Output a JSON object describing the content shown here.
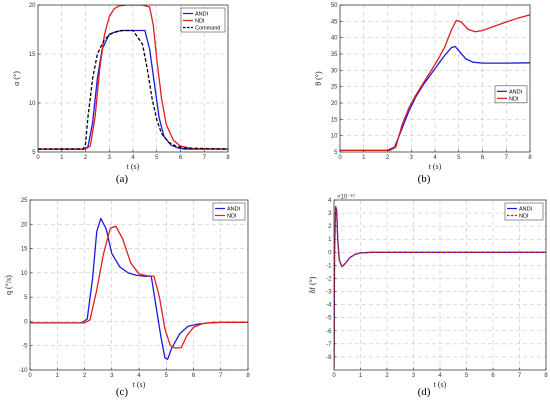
{
  "chart_data": [
    {
      "type": "line",
      "panel_label": "(a)",
      "xlabel": "t (s)",
      "ylabel": "α (°)",
      "xlim": [
        0,
        8
      ],
      "ylim": [
        5,
        20
      ],
      "xticks": [
        "0",
        "1",
        "2",
        "3",
        "4",
        "5",
        "6",
        "7",
        "8"
      ],
      "yticks": [
        "5",
        "10",
        "15",
        "20"
      ],
      "grid": true,
      "legend_placement": "top-right",
      "series": [
        {
          "name": "ANDI",
          "color": "#1a1adb",
          "dash": "solid",
          "x": [
            0,
            1.9,
            2.1,
            2.3,
            2.5,
            2.7,
            3.0,
            3.3,
            3.6,
            4.0,
            4.5,
            4.7,
            4.9,
            5.1,
            5.3,
            5.6,
            5.9,
            6.2,
            7.0,
            8.0
          ],
          "y": [
            5.3,
            5.3,
            5.5,
            8.0,
            12.5,
            15.5,
            17.0,
            17.3,
            17.4,
            17.4,
            17.4,
            15.5,
            12.0,
            8.5,
            6.6,
            5.7,
            5.4,
            5.3,
            5.3,
            5.3
          ]
        },
        {
          "name": "NDI",
          "color": "#e01e1e",
          "dash": "solid",
          "x": [
            0,
            2.0,
            2.2,
            2.4,
            2.6,
            2.8,
            3.0,
            3.2,
            3.4,
            3.7,
            4.0,
            4.4,
            4.7,
            4.85,
            5.0,
            5.2,
            5.4,
            5.7,
            6.0,
            6.5,
            8.0
          ],
          "y": [
            5.3,
            5.3,
            5.6,
            8.5,
            13.5,
            17.0,
            18.8,
            19.6,
            19.9,
            20.0,
            20.0,
            20.0,
            19.8,
            18.0,
            14.5,
            10.5,
            7.8,
            6.2,
            5.6,
            5.35,
            5.3
          ]
        },
        {
          "name": "Command",
          "color": "#000000",
          "dash": "dashed",
          "x": [
            0,
            1.9,
            2.0,
            2.1,
            2.3,
            2.5,
            2.8,
            3.1,
            3.5,
            4.0,
            4.4,
            4.6,
            4.8,
            5.0,
            5.2,
            5.5,
            5.8,
            6.2,
            8.0
          ],
          "y": [
            5.3,
            5.3,
            5.8,
            8.5,
            12.5,
            15.0,
            16.5,
            17.1,
            17.4,
            17.4,
            16.0,
            13.5,
            10.5,
            8.3,
            6.9,
            6.0,
            5.6,
            5.4,
            5.3
          ]
        }
      ]
    },
    {
      "type": "line",
      "panel_label": "(b)",
      "xlabel": "t (s)",
      "ylabel": "θ (°)",
      "xlim": [
        0,
        8
      ],
      "ylim": [
        5,
        50
      ],
      "xticks": [
        "0",
        "1",
        "2",
        "3",
        "4",
        "5",
        "6",
        "7",
        "8"
      ],
      "yticks": [
        "5",
        "10",
        "15",
        "20",
        "25",
        "30",
        "35",
        "40",
        "45",
        "50"
      ],
      "grid": true,
      "legend_placement": "center-right",
      "series": [
        {
          "name": "ANDI",
          "color": "#1a1adb",
          "dash": "solid",
          "x": [
            0,
            2.0,
            2.3,
            2.6,
            2.9,
            3.2,
            3.5,
            3.8,
            4.1,
            4.4,
            4.7,
            4.85,
            5.0,
            5.3,
            5.6,
            6.0,
            7.0,
            8.0
          ],
          "y": [
            5.5,
            5.5,
            6.5,
            12.0,
            17.5,
            22.0,
            25.5,
            28.5,
            31.5,
            34.5,
            37.0,
            37.3,
            36.0,
            33.5,
            32.5,
            32.2,
            32.2,
            32.3
          ]
        },
        {
          "name": "NDI",
          "color": "#e01e1e",
          "dash": "solid",
          "x": [
            0,
            2.1,
            2.35,
            2.6,
            2.9,
            3.2,
            3.5,
            3.8,
            4.1,
            4.4,
            4.7,
            4.9,
            5.1,
            5.4,
            5.7,
            6.0,
            6.5,
            7.0,
            7.5,
            8.0
          ],
          "y": [
            5.5,
            5.5,
            6.5,
            13.0,
            18.5,
            22.5,
            26.0,
            29.5,
            33.0,
            37.0,
            42.5,
            45.3,
            44.8,
            42.5,
            41.8,
            42.2,
            43.5,
            44.8,
            46.0,
            47.0
          ]
        }
      ]
    },
    {
      "type": "line",
      "panel_label": "(c)",
      "xlabel": "t (s)",
      "ylabel": "q (°/s)",
      "xlim": [
        0,
        8
      ],
      "ylim": [
        -10,
        25
      ],
      "xticks": [
        "0",
        "1",
        "2",
        "3",
        "4",
        "5",
        "6",
        "7",
        "8"
      ],
      "yticks": [
        "-10",
        "-5",
        "0",
        "5",
        "10",
        "15",
        "20",
        "25"
      ],
      "grid": true,
      "legend_placement": "top-right",
      "series": [
        {
          "name": "ANDI",
          "color": "#1a1adb",
          "dash": "solid",
          "x": [
            0,
            1.9,
            2.1,
            2.3,
            2.45,
            2.6,
            2.8,
            3.0,
            3.3,
            3.6,
            3.9,
            4.2,
            4.45,
            4.6,
            4.8,
            4.95,
            5.05,
            5.2,
            5.5,
            5.8,
            6.2,
            6.6,
            7.0,
            8.0
          ],
          "y": [
            -0.3,
            -0.3,
            0.5,
            9.0,
            18.5,
            21.2,
            19.0,
            14.0,
            11.2,
            10.0,
            9.5,
            9.3,
            9.3,
            4.0,
            -3.0,
            -7.5,
            -7.8,
            -5.5,
            -2.5,
            -1.0,
            -0.5,
            -0.3,
            -0.2,
            -0.2
          ]
        },
        {
          "name": "NDI",
          "color": "#e01e1e",
          "dash": "solid",
          "x": [
            0,
            2.0,
            2.2,
            2.45,
            2.7,
            2.95,
            3.15,
            3.4,
            3.7,
            4.0,
            4.3,
            4.55,
            4.75,
            4.95,
            5.15,
            5.35,
            5.55,
            5.75,
            6.0,
            6.3,
            6.7,
            7.0,
            8.0
          ],
          "y": [
            -0.3,
            -0.3,
            0.3,
            6.5,
            14.0,
            19.2,
            19.6,
            17.0,
            12.0,
            9.8,
            9.4,
            9.3,
            5.0,
            -1.5,
            -5.0,
            -5.5,
            -5.4,
            -3.0,
            -1.2,
            -0.5,
            -0.2,
            -0.2,
            -0.2
          ]
        }
      ]
    },
    {
      "type": "line",
      "panel_label": "(d)",
      "xlabel": "t (s)",
      "ylabel": "δf (°)",
      "y_exponent": "×10⁻¹⁰",
      "xlim": [
        0,
        8
      ],
      "ylim": [
        -9,
        4
      ],
      "xticks": [
        "0",
        "1",
        "2",
        "3",
        "4",
        "5",
        "6",
        "7",
        "8"
      ],
      "yticks": [
        "-8",
        "-7",
        "-6",
        "-5",
        "-4",
        "-3",
        "-2",
        "-1",
        "0",
        "1",
        "2",
        "3",
        "4"
      ],
      "grid": true,
      "legend_placement": "top-right",
      "series": [
        {
          "name": "ANDI",
          "color": "#1a1adb",
          "dash": "solid",
          "x": [
            0,
            0.02,
            0.06,
            0.1,
            0.14,
            0.2,
            0.3,
            0.45,
            0.6,
            0.8,
            1.0,
            1.4,
            2.0,
            8.0
          ],
          "y": [
            -8.8,
            0.0,
            3.5,
            3.2,
            1.0,
            -0.6,
            -1.1,
            -0.8,
            -0.4,
            -0.15,
            -0.05,
            0.0,
            0.0,
            0.0
          ]
        },
        {
          "name": "NDI",
          "color": "#e01e1e",
          "dash": "dashed",
          "x": [
            0,
            0.02,
            0.06,
            0.1,
            0.14,
            0.2,
            0.3,
            0.45,
            0.6,
            0.8,
            1.0,
            1.4,
            2.0,
            8.0
          ],
          "y": [
            -8.8,
            0.0,
            3.5,
            3.2,
            1.0,
            -0.6,
            -1.1,
            -0.8,
            -0.4,
            -0.15,
            -0.05,
            0.0,
            0.0,
            0.0
          ]
        }
      ]
    }
  ]
}
